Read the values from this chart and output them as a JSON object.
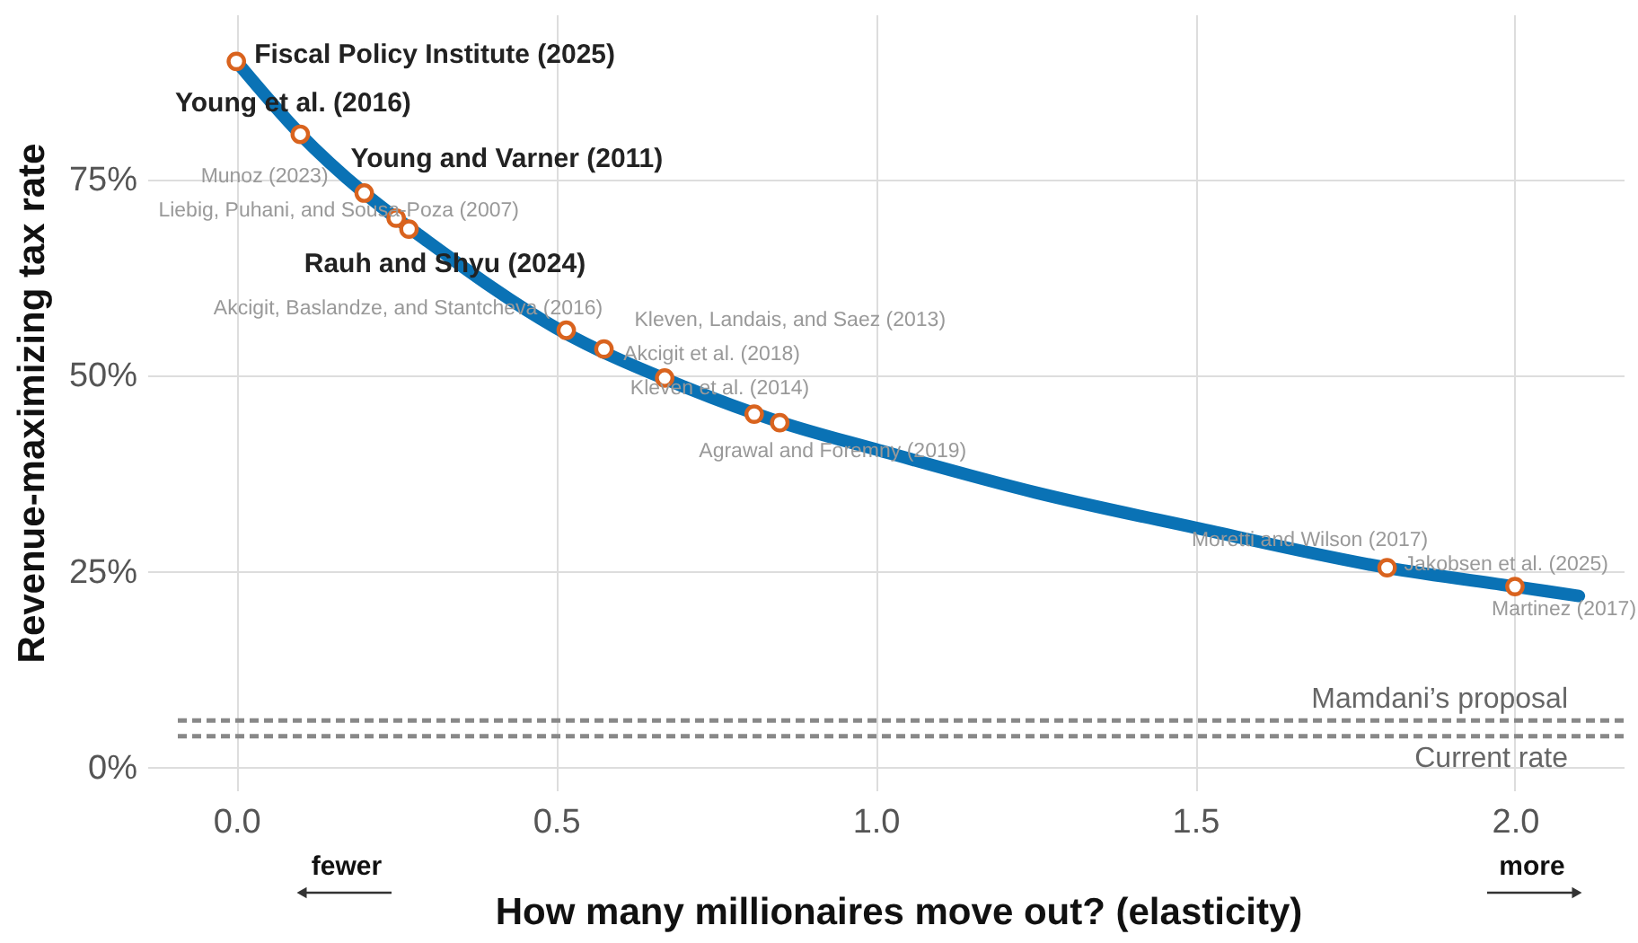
{
  "chart_data": {
    "type": "line",
    "xlabel": "How many millionaires move out? (elasticity)",
    "ylabel": "Revenue-maximizing tax rate",
    "xlim": [
      -0.1,
      2.17
    ],
    "ylim": [
      -3,
      96
    ],
    "xticks": [
      {
        "value": 0,
        "label": "0.0"
      },
      0.5,
      {
        "value": 1,
        "label": "1.0"
      },
      1.5,
      {
        "value": 2,
        "label": "2.0"
      }
    ],
    "yticks": [
      {
        "value": 0,
        "label": "0%"
      },
      {
        "value": 25,
        "label": "25%"
      },
      {
        "value": 50,
        "label": "50%"
      },
      {
        "value": 75,
        "label": "75%"
      }
    ],
    "grid": true,
    "series": [
      {
        "color": "#0a72b5",
        "line_style": "solid",
        "x": [
          0,
          0.1,
          0.2,
          0.3,
          0.5,
          0.7,
          0.85,
          1.0,
          1.25,
          1.5,
          1.8,
          2.0,
          2.1
        ],
        "values": [
          90,
          80.7,
          73.2,
          67,
          56,
          48.5,
          44,
          40.5,
          35,
          30.5,
          25.4,
          23,
          21.8
        ]
      },
      {
        "type": "scatter",
        "color": "#d9631e",
        "x": [
          0,
          0.1,
          0.2,
          0.25,
          0.27,
          0.516,
          0.575,
          0.67,
          0.81,
          0.85,
          1.8,
          2.0
        ],
        "values": [
          90,
          80.7,
          73.2,
          70,
          68.6,
          55.7,
          53.3,
          49.6,
          45,
          43.9,
          25.4,
          23
        ]
      }
    ],
    "ref_lines": [
      {
        "axis": "y",
        "value": 5.9,
        "label": "Mamdani’s proposal",
        "color": "#888888",
        "line_style": "dashed"
      },
      {
        "axis": "y",
        "value": 3.9,
        "label": "Current rate",
        "color": "#888888",
        "line_style": "dashed"
      }
    ],
    "annotations": [
      {
        "text": "Fiscal Policy Institute (2025)",
        "x": 0,
        "y": 90
      },
      {
        "text": "Young et al. (2016)",
        "x": 0.1,
        "y": 80.7
      },
      {
        "text": "Young and Varner (2011)",
        "x": 0.1,
        "y": 80.7
      },
      {
        "text": "Munoz (2023)",
        "x": 0.2,
        "y": 73.2
      },
      {
        "text": "Liebig, Puhani, and Sousa-Poza (2007)",
        "x": 0.25,
        "y": 70
      },
      {
        "text": "Rauh and Shyu (2024)",
        "x": 0.27,
        "y": 68.6
      },
      {
        "text": "Akcigit, Baslandze, and Stantcheva (2016)",
        "x": 0.516,
        "y": 55.7
      },
      {
        "text": "Kleven, Landais, and Saez (2013)",
        "x": 0.575,
        "y": 53.3
      },
      {
        "text": "Akcigit et al. (2018)",
        "x": 0.67,
        "y": 49.6
      },
      {
        "text": "Kleven et al. (2014)",
        "x": 0.81,
        "y": 45
      },
      {
        "text": "Agrawal and Foremny (2019)",
        "x": 0.85,
        "y": 43.9
      },
      {
        "text": "Moretti and Wilson (2017)",
        "x": 1.8,
        "y": 25.4
      },
      {
        "text": "Jakobsen et al. (2025)",
        "x": 2.0,
        "y": 23
      },
      {
        "text": "Martinez (2017)",
        "x": 2.0,
        "y": 23
      },
      "fewer",
      "more"
    ]
  }
}
